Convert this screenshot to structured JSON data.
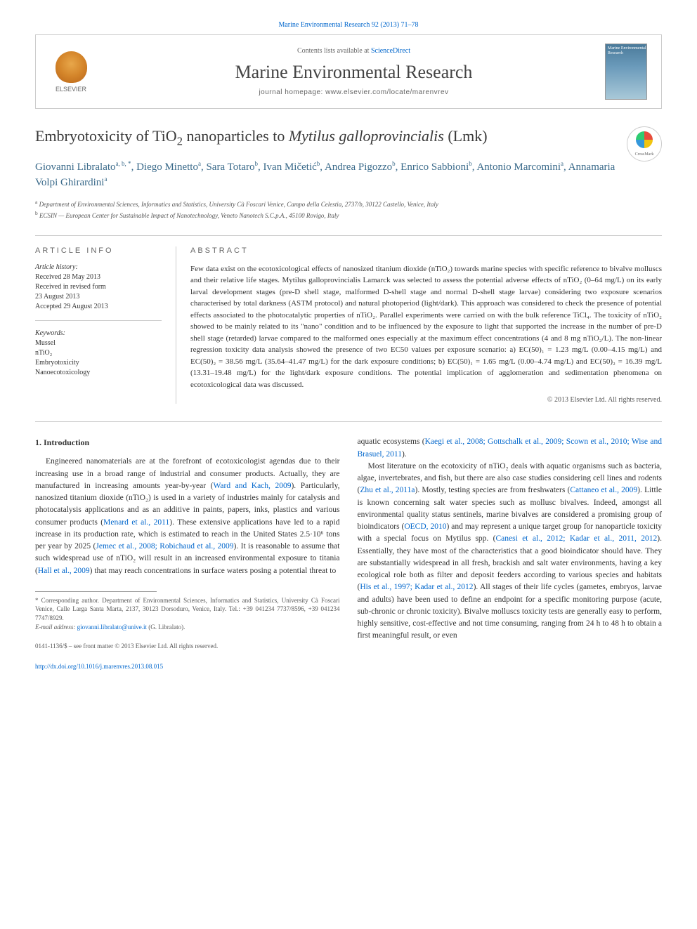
{
  "citation": "Marine Environmental Research 92 (2013) 71–78",
  "header": {
    "contents_prefix": "Contents lists available at ",
    "contents_link": "ScienceDirect",
    "journal_name": "Marine Environmental Research",
    "homepage_prefix": "journal homepage: ",
    "homepage_url": "www.elsevier.com/locate/marenvrev",
    "elsevier_label": "ELSEVIER",
    "cover_text": "Marine Environmental Research"
  },
  "crossmark_label": "CrossMark",
  "title_parts": {
    "p1": "Embryotoxicity of TiO",
    "sub1": "2",
    "p2": " nanoparticles to ",
    "italic": "Mytilus galloprovincialis",
    "p3": " (Lmk)"
  },
  "authors": [
    {
      "name": "Giovanni Libralato",
      "sup": "a, b, *"
    },
    {
      "name": "Diego Minetto",
      "sup": "a"
    },
    {
      "name": "Sara Totaro",
      "sup": "b"
    },
    {
      "name": "Ivan Mičetić",
      "sup": "b"
    },
    {
      "name": "Andrea Pigozzo",
      "sup": "b"
    },
    {
      "name": "Enrico Sabbioni",
      "sup": "b"
    },
    {
      "name": "Antonio Marcomini",
      "sup": "a"
    },
    {
      "name": "Annamaria Volpi Ghirardini",
      "sup": "a"
    }
  ],
  "affiliations": [
    {
      "sup": "a",
      "text": "Department of Environmental Sciences, Informatics and Statistics, University Cà Foscari Venice, Campo della Celestia, 2737/b, 30122 Castello, Venice, Italy"
    },
    {
      "sup": "b",
      "text": "ECSIN — European Center for Sustainable Impact of Nanotechnology, Veneto Nanotech S.C.p.A., 45100 Rovigo, Italy"
    }
  ],
  "info": {
    "section_label": "ARTICLE INFO",
    "history_label": "Article history:",
    "history": [
      "Received 28 May 2013",
      "Received in revised form",
      "23 August 2013",
      "Accepted 29 August 2013"
    ],
    "keywords_label": "Keywords:",
    "keywords": [
      "Mussel",
      "nTiO₂",
      "Embryotoxicity",
      "Nanoecotoxicology"
    ]
  },
  "abstract": {
    "section_label": "ABSTRACT",
    "text": "Few data exist on the ecotoxicological effects of nanosized titanium dioxide (nTiO₂) towards marine species with specific reference to bivalve molluscs and their relative life stages. Mytilus galloprovincialis Lamarck was selected to assess the potential adverse effects of nTiO₂ (0–64 mg/L) on its early larval development stages (pre-D shell stage, malformed D-shell stage and normal D-shell stage larvae) considering two exposure scenarios characterised by total darkness (ASTM protocol) and natural photoperiod (light/dark). This approach was considered to check the presence of potential effects associated to the photocatalytic properties of nTiO₂. Parallel experiments were carried on with the bulk reference TiCl₄. The toxicity of nTiO₂ showed to be mainly related to its \"nano\" condition and to be influenced by the exposure to light that supported the increase in the number of pre-D shell stage (retarded) larvae compared to the malformed ones especially at the maximum effect concentrations (4 and 8 mg nTiO₂/L). The non-linear regression toxicity data analysis showed the presence of two EC50 values per exposure scenario: a) EC(50)₁ = 1.23 mg/L (0.00–4.15 mg/L) and EC(50)₂ = 38.56 mg/L (35.64–41.47 mg/L) for the dark exposure conditions; b) EC(50)₁ = 1.65 mg/L (0.00–4.74 mg/L) and EC(50)₂ = 16.39 mg/L (13.31–19.48 mg/L) for the light/dark exposure conditions. The potential implication of agglomeration and sedimentation phenomena on ecotoxicological data was discussed.",
    "copyright": "© 2013 Elsevier Ltd. All rights reserved."
  },
  "body": {
    "heading1": "1. Introduction",
    "col1_p1_a": "Engineered nanomaterials are at the forefront of ecotoxicologist agendas due to their increasing use in a broad range of industrial and consumer products. Actually, they are manufactured in increasing amounts year-by-year (",
    "col1_p1_ref1": "Ward and Kach, 2009",
    "col1_p1_b": "). Particularly, nanosized titanium dioxide (nTiO₂) is used in a variety of industries mainly for catalysis and photocatalysis applications and as an additive in paints, papers, inks, plastics and various consumer products (",
    "col1_p1_ref2": "Menard et al., 2011",
    "col1_p1_c": "). These extensive applications have led to a rapid increase in its production rate, which is estimated to reach in the United States 2.5·10⁶ tons per year by 2025 (",
    "col1_p1_ref3": "Jemec et al., 2008; Robichaud et al., 2009",
    "col1_p1_d": "). It is reasonable to assume that such widespread use of nTiO₂ will result in an increased environmental exposure to titania (",
    "col1_p1_ref4": "Hall et al., 2009",
    "col1_p1_e": ") that may reach concentrations in surface waters posing a potential threat to",
    "col2_p1_a": "aquatic ecosystems (",
    "col2_p1_ref1": "Kaegi et al., 2008; Gottschalk et al., 2009; Scown et al., 2010; Wise and Brasuel, 2011",
    "col2_p1_b": ").",
    "col2_p2_a": "Most literature on the ecotoxicity of nTiO₂ deals with aquatic organisms such as bacteria, algae, invertebrates, and fish, but there are also case studies considering cell lines and rodents (",
    "col2_p2_ref1": "Zhu et al., 2011a",
    "col2_p2_b": "). Mostly, testing species are from freshwaters (",
    "col2_p2_ref2": "Cattaneo et al., 2009",
    "col2_p2_c": "). Little is known concerning salt water species such as mollusc bivalves. Indeed, amongst all environmental quality status sentinels, marine bivalves are considered a promising group of bioindicators (",
    "col2_p2_ref3": "OECD, 2010",
    "col2_p2_d": ") and may represent a unique target group for nanoparticle toxicity with a special focus on Mytilus spp. (",
    "col2_p2_ref4": "Canesi et al., 2012; Kadar et al., 2011, 2012",
    "col2_p2_e": "). Essentially, they have most of the characteristics that a good bioindicator should have. They are substantially widespread in all fresh, brackish and salt water environments, having a key ecological role both as filter and deposit feeders according to various species and habitats (",
    "col2_p2_ref5": "His et al., 1997; Kadar et al., 2012",
    "col2_p2_f": "). All stages of their life cycles (gametes, embryos, larvae and adults) have been used to define an endpoint for a specific monitoring purpose (acute, sub-chronic or chronic toxicity). Bivalve molluscs toxicity tests are generally easy to perform, highly sensitive, cost-effective and not time consuming, ranging from 24 h to 48 h to obtain a first meaningful result, or even"
  },
  "footnote": {
    "corr_label": "* Corresponding author. Department of Environmental Sciences, Informatics and Statistics, University Cà Foscari Venice, Calle Larga Santa Marta, 2137, 30123 Dorsoduro, Venice, Italy. Tel.: +39 041234 7737/8596, +39 041234 7747/8929.",
    "email_label": "E-mail address: ",
    "email": "giovanni.libralato@unive.it",
    "email_suffix": " (G. Libralato)."
  },
  "footer": {
    "issn": "0141-1136/$ – see front matter © 2013 Elsevier Ltd. All rights reserved.",
    "doi": "http://dx.doi.org/10.1016/j.marenvres.2013.08.015"
  },
  "colors": {
    "link": "#0066cc",
    "text": "#333333",
    "author": "#3a6a8a",
    "border": "#cccccc"
  }
}
